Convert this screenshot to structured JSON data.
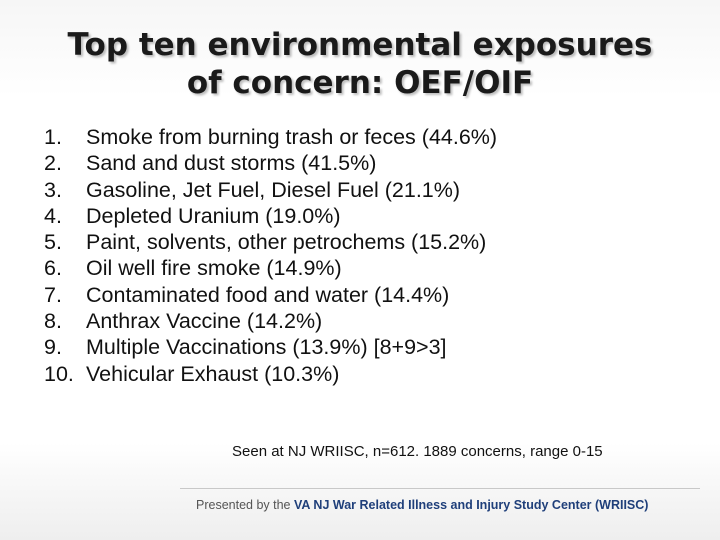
{
  "slide": {
    "title_line1": "Top ten environmental exposures",
    "title_line2": "of concern: OEF/OIF",
    "items": [
      {
        "num": "1.",
        "text": "Smoke from burning trash or feces (44.6%)"
      },
      {
        "num": "2.",
        "text": "Sand and dust storms (41.5%)"
      },
      {
        "num": "3.",
        "text": "Gasoline, Jet Fuel, Diesel Fuel (21.1%)"
      },
      {
        "num": "4.",
        "text": "Depleted Uranium (19.0%)"
      },
      {
        "num": "5.",
        "text": "Paint, solvents, other petrochems (15.2%)"
      },
      {
        "num": "6.",
        "text": "Oil well fire smoke (14.9%)"
      },
      {
        "num": "7.",
        "text": "Contaminated food and water (14.4%)"
      },
      {
        "num": "8.",
        "text": "Anthrax Vaccine (14.2%)"
      },
      {
        "num": "9.",
        "text": "Multiple Vaccinations (13.9%) [8+9>3]"
      },
      {
        "num": "10.",
        "text": "Vehicular Exhaust (10.3%)"
      }
    ],
    "note": "Seen at NJ WRIISC, n=612. 1889 concerns, range 0-15"
  },
  "footer": {
    "presented_by": "Presented by the ",
    "org": "VA NJ War Related Illness and Injury Study Center (WRIISC)"
  },
  "colors": {
    "org_text": "#1f3f7a",
    "body_text": "#111111"
  }
}
